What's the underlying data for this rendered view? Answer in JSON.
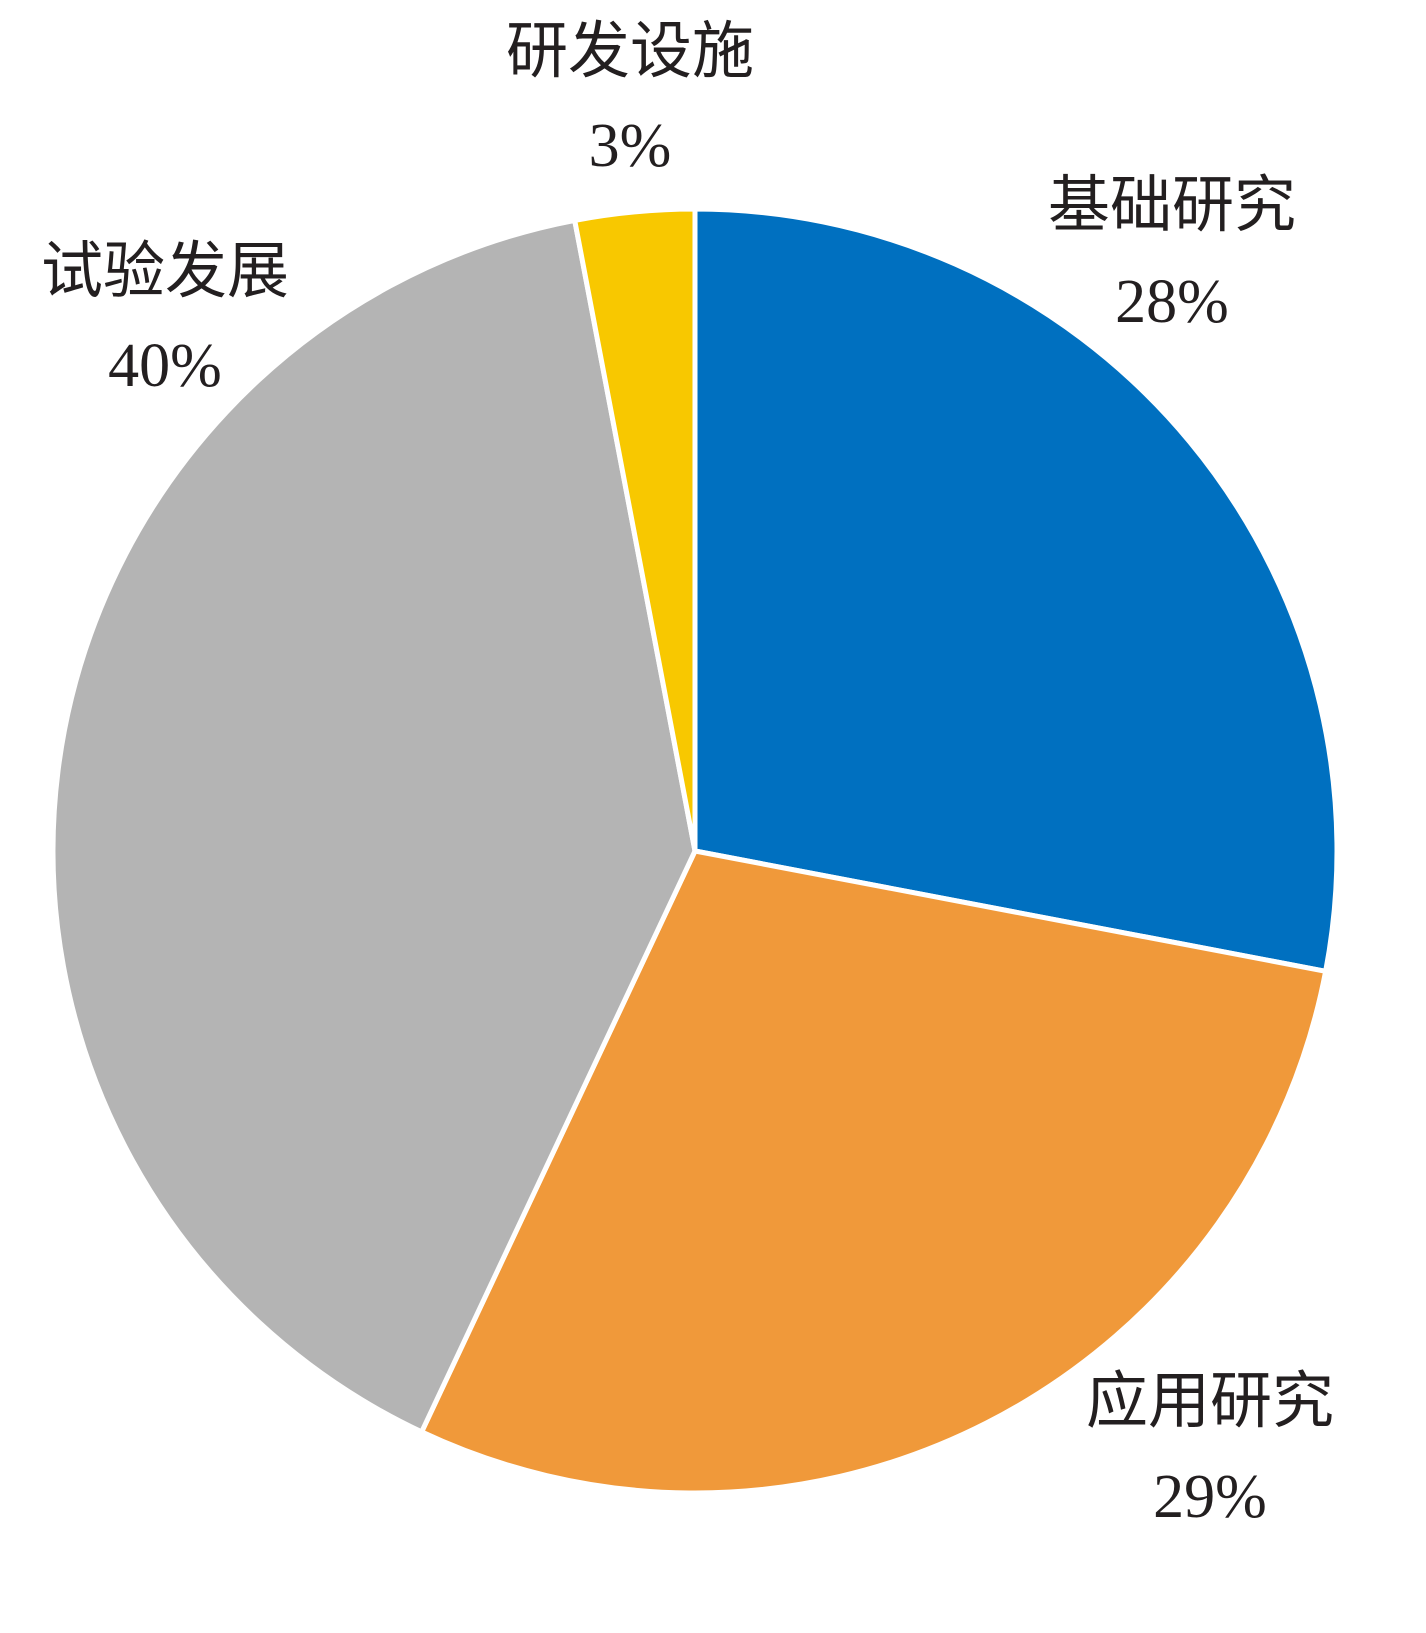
{
  "chart_data": {
    "type": "pie",
    "categories": [
      "基础研究",
      "应用研究",
      "试验发展",
      "研发设施"
    ],
    "values": [
      28,
      29,
      40,
      3
    ],
    "value_labels": [
      "28%",
      "29%",
      "40%",
      "3%"
    ],
    "colors": [
      "#0070c0",
      "#f0993a",
      "#b4b4b4",
      "#f8c800"
    ]
  }
}
